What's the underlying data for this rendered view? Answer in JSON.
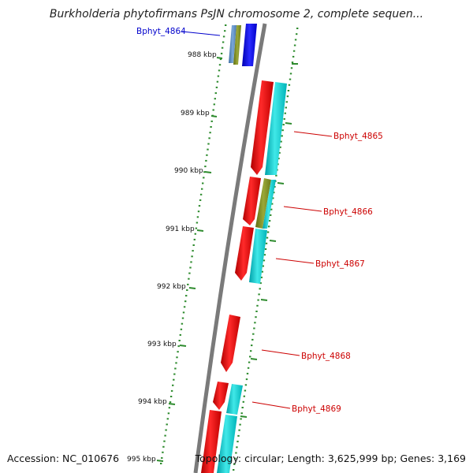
{
  "title": "Burkholderia phytofirmans PsJN chromosome 2, complete sequen...",
  "footer": {
    "accession": "Accession: NC_010676",
    "topology": "Topology: circular; Length: 3,625,999 bp; Genes: 3,169"
  },
  "colors": {
    "backbone": "#7a7a7a",
    "ticks": "#2e8b2e",
    "cds_forward": "#00bcbc",
    "cds_reverse": "#e00000",
    "olive_feature": "#7f8f1e",
    "blue_feature": "#0000ee",
    "label_reverse": "#cc0000",
    "label_forward": "#0000cc"
  },
  "scale_labels": [
    "988 kbp",
    "989 kbp",
    "990 kbp",
    "991 kbp",
    "992 kbp",
    "993 kbp",
    "994 kbp",
    "995 kbp"
  ],
  "gene_labels": [
    {
      "name": "Bphyt_4864",
      "color": "#0000cc"
    },
    {
      "name": "Bphyt_4865",
      "color": "#cc0000"
    },
    {
      "name": "Bphyt_4866",
      "color": "#cc0000"
    },
    {
      "name": "Bphyt_4867",
      "color": "#cc0000"
    },
    {
      "name": "Bphyt_4868",
      "color": "#cc0000"
    },
    {
      "name": "Bphyt_4869",
      "color": "#cc0000"
    }
  ]
}
